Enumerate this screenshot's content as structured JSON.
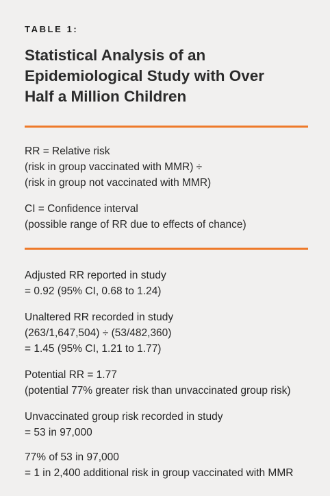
{
  "table_label": "TABLE 1:",
  "title_lines": [
    "Statistical Analysis of an",
    "Epidemiological Study with Over",
    "Half a Million Children"
  ],
  "colors": {
    "accent_rule": "#ee7a2a",
    "background": "#f1f0ef",
    "text": "#262626"
  },
  "definitions": [
    {
      "lines": [
        "RR = Relative risk",
        "(risk in group vaccinated with MMR) ÷",
        "(risk in group not vaccinated with MMR)"
      ]
    },
    {
      "lines": [
        "CI = Confidence interval",
        "(possible range of RR due to effects of chance)"
      ]
    }
  ],
  "results": [
    {
      "lines": [
        "Adjusted RR reported in study",
        "= 0.92 (95% CI, 0.68 to 1.24)"
      ]
    },
    {
      "lines": [
        "Unaltered RR recorded in study",
        "(263/1,647,504) ÷ (53/482,360)",
        "= 1.45 (95% CI, 1.21 to 1.77)"
      ]
    },
    {
      "lines": [
        "Potential RR = 1.77",
        "(potential 77% greater risk than unvaccinated group risk)"
      ]
    },
    {
      "lines": [
        "Unvaccinated group risk recorded in study",
        "= 53 in 97,000"
      ]
    },
    {
      "lines": [
        "77% of 53 in 97,000",
        "= 1 in 2,400 additional risk in group vaccinated with MMR"
      ]
    }
  ]
}
